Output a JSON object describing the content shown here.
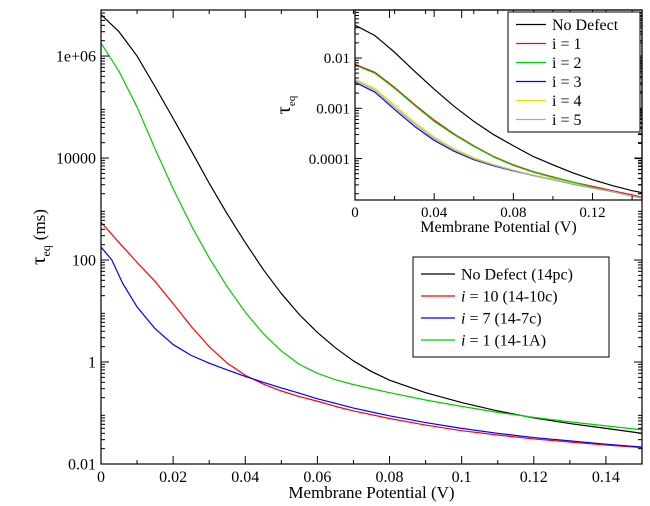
{
  "chart_data": [
    {
      "type": "line",
      "xlabel": "Membrane Potential (V)",
      "ylabel": "τ_eq (ms)",
      "ylabel_main": "τ",
      "ylabel_sub": "eq",
      "ylabel_unit": "(ms)",
      "xscale": "linear",
      "yscale": "log",
      "xlim": [
        0,
        0.15
      ],
      "ylim": [
        0.01,
        8000000
      ],
      "xticks": [
        0,
        0.02,
        0.04,
        0.06,
        0.08,
        0.1,
        0.12,
        0.14
      ],
      "xtick_labels": [
        "0",
        "0.02",
        "0.04",
        "0.06",
        "0.08",
        "0.1",
        "0.12",
        "0.14"
      ],
      "yticks": [
        0.01,
        1,
        100,
        10000,
        1000000
      ],
      "ytick_labels": [
        "0.01",
        "1",
        "100",
        "10000",
        "1e+06"
      ],
      "legend_position": "right",
      "series": [
        {
          "name": "No Defect (14pc)",
          "color": "#000000",
          "points": [
            [
              0,
              6500000
            ],
            [
              0.005,
              3000000
            ],
            [
              0.01,
              1000000
            ],
            [
              0.015,
              250000
            ],
            [
              0.02,
              60000
            ],
            [
              0.025,
              14000
            ],
            [
              0.03,
              3200
            ],
            [
              0.035,
              800
            ],
            [
              0.04,
              220
            ],
            [
              0.045,
              65
            ],
            [
              0.05,
              22
            ],
            [
              0.055,
              8.5
            ],
            [
              0.06,
              3.8
            ],
            [
              0.065,
              1.9
            ],
            [
              0.07,
              1.05
            ],
            [
              0.075,
              0.65
            ],
            [
              0.08,
              0.44
            ],
            [
              0.09,
              0.25
            ],
            [
              0.1,
              0.16
            ],
            [
              0.11,
              0.11
            ],
            [
              0.12,
              0.08
            ],
            [
              0.13,
              0.062
            ],
            [
              0.14,
              0.05
            ],
            [
              0.15,
              0.04
            ]
          ]
        },
        {
          "name": "i = 10 (14-10c)",
          "name_italic": "i",
          "name_rest": " = 10 (14-10c)",
          "color": "#ff0000",
          "points": [
            [
              0,
              550
            ],
            [
              0.005,
              220
            ],
            [
              0.01,
              90
            ],
            [
              0.015,
              38
            ],
            [
              0.02,
              14
            ],
            [
              0.025,
              5
            ],
            [
              0.03,
              2
            ],
            [
              0.035,
              0.95
            ],
            [
              0.04,
              0.55
            ],
            [
              0.045,
              0.37
            ],
            [
              0.05,
              0.27
            ],
            [
              0.055,
              0.21
            ],
            [
              0.06,
              0.17
            ],
            [
              0.065,
              0.135
            ],
            [
              0.07,
              0.11
            ],
            [
              0.08,
              0.078
            ],
            [
              0.09,
              0.058
            ],
            [
              0.1,
              0.045
            ],
            [
              0.11,
              0.037
            ],
            [
              0.12,
              0.031
            ],
            [
              0.13,
              0.027
            ],
            [
              0.14,
              0.0235
            ],
            [
              0.15,
              0.021
            ]
          ]
        },
        {
          "name": "i = 7 (14-7c)",
          "name_italic": "i",
          "name_rest": " = 7 (14-7c)",
          "color": "#0000ff",
          "points": [
            [
              0,
              180
            ],
            [
              0.003,
              100
            ],
            [
              0.006,
              35
            ],
            [
              0.01,
              12
            ],
            [
              0.015,
              4.5
            ],
            [
              0.02,
              2.2
            ],
            [
              0.025,
              1.35
            ],
            [
              0.03,
              0.95
            ],
            [
              0.035,
              0.7
            ],
            [
              0.04,
              0.52
            ],
            [
              0.045,
              0.4
            ],
            [
              0.05,
              0.31
            ],
            [
              0.055,
              0.245
            ],
            [
              0.06,
              0.19
            ],
            [
              0.065,
              0.155
            ],
            [
              0.07,
              0.125
            ],
            [
              0.08,
              0.088
            ],
            [
              0.09,
              0.065
            ],
            [
              0.1,
              0.05
            ],
            [
              0.11,
              0.04
            ],
            [
              0.12,
              0.033
            ],
            [
              0.13,
              0.0285
            ],
            [
              0.14,
              0.0245
            ],
            [
              0.15,
              0.0215
            ]
          ]
        },
        {
          "name": "i = 1 (14-1A)",
          "name_italic": "i",
          "name_rest": " = 1 (14-1A)",
          "color": "#00cc00",
          "points": [
            [
              0,
              1800000
            ],
            [
              0.005,
              500000
            ],
            [
              0.01,
              100000
            ],
            [
              0.015,
              15000
            ],
            [
              0.02,
              2500
            ],
            [
              0.025,
              480
            ],
            [
              0.03,
              110
            ],
            [
              0.035,
              30
            ],
            [
              0.04,
              9.5
            ],
            [
              0.045,
              3.6
            ],
            [
              0.05,
              1.65
            ],
            [
              0.055,
              0.9
            ],
            [
              0.06,
              0.6
            ],
            [
              0.065,
              0.45
            ],
            [
              0.07,
              0.36
            ],
            [
              0.08,
              0.25
            ],
            [
              0.09,
              0.18
            ],
            [
              0.1,
              0.135
            ],
            [
              0.11,
              0.103
            ],
            [
              0.12,
              0.082
            ],
            [
              0.13,
              0.067
            ],
            [
              0.14,
              0.056
            ],
            [
              0.15,
              0.047
            ]
          ]
        }
      ]
    },
    {
      "type": "line",
      "xlabel": "Membrane Potential (V)",
      "ylabel": "τ_eq",
      "ylabel_main": "τ",
      "ylabel_sub": "eq",
      "xscale": "linear",
      "yscale": "log",
      "xlim": [
        0,
        0.145
      ],
      "ylim": [
        1.5e-05,
        0.09
      ],
      "xticks": [
        0,
        0.04,
        0.08,
        0.12
      ],
      "xtick_labels": [
        "0",
        "0.04",
        "0.08",
        "0.12"
      ],
      "yticks": [
        0.0001,
        0.001,
        0.01
      ],
      "ytick_labels": [
        "0.0001",
        "0.001",
        "0.01"
      ],
      "legend_position": "top-right",
      "series": [
        {
          "name": "No Defect",
          "color": "#000000",
          "points": [
            [
              0,
              0.045
            ],
            [
              0.01,
              0.028
            ],
            [
              0.02,
              0.013
            ],
            [
              0.03,
              0.0055
            ],
            [
              0.04,
              0.0024
            ],
            [
              0.05,
              0.0011
            ],
            [
              0.06,
              0.00055
            ],
            [
              0.07,
              0.0003
            ],
            [
              0.08,
              0.00018
            ],
            [
              0.09,
              0.00011
            ],
            [
              0.1,
              7.5e-05
            ],
            [
              0.11,
              5.2e-05
            ],
            [
              0.12,
              3.8e-05
            ],
            [
              0.13,
              2.9e-05
            ],
            [
              0.14,
              2.3e-05
            ],
            [
              0.145,
              2.1e-05
            ]
          ]
        },
        {
          "name": "i = 1",
          "color": "#ff0000",
          "points": [
            [
              0,
              0.0075
            ],
            [
              0.01,
              0.0052
            ],
            [
              0.02,
              0.0026
            ],
            [
              0.03,
              0.0012
            ],
            [
              0.04,
              0.00058
            ],
            [
              0.05,
              0.00031
            ],
            [
              0.06,
              0.00018
            ],
            [
              0.07,
              0.00011
            ],
            [
              0.08,
              7.5e-05
            ],
            [
              0.09,
              5.5e-05
            ],
            [
              0.1,
              4.3e-05
            ],
            [
              0.11,
              3.4e-05
            ],
            [
              0.12,
              2.8e-05
            ],
            [
              0.13,
              2.3e-05
            ],
            [
              0.14,
              1.9e-05
            ],
            [
              0.145,
              1.7e-05
            ]
          ]
        },
        {
          "name": "i = 2",
          "color": "#00cc00",
          "points": [
            [
              0,
              0.0072
            ],
            [
              0.01,
              0.005
            ],
            [
              0.02,
              0.0025
            ],
            [
              0.03,
              0.00115
            ],
            [
              0.04,
              0.00055
            ],
            [
              0.05,
              0.0003
            ],
            [
              0.06,
              0.000175
            ],
            [
              0.07,
              0.000108
            ],
            [
              0.08,
              7.3e-05
            ],
            [
              0.09,
              5.4e-05
            ],
            [
              0.1,
              4.2e-05
            ],
            [
              0.11,
              3.4e-05
            ],
            [
              0.12,
              2.7e-05
            ],
            [
              0.13,
              2.2e-05
            ],
            [
              0.14,
              1.8e-05
            ],
            [
              0.145,
              1.65e-05
            ]
          ]
        },
        {
          "name": "i = 3",
          "color": "#0000ff",
          "points": [
            [
              0,
              0.0033
            ],
            [
              0.01,
              0.0021
            ],
            [
              0.02,
              0.00095
            ],
            [
              0.03,
              0.00044
            ],
            [
              0.04,
              0.00023
            ],
            [
              0.05,
              0.00014
            ],
            [
              0.06,
              9.5e-05
            ],
            [
              0.07,
              7.2e-05
            ],
            [
              0.08,
              5.7e-05
            ],
            [
              0.09,
              4.6e-05
            ],
            [
              0.1,
              3.8e-05
            ],
            [
              0.11,
              3.1e-05
            ],
            [
              0.12,
              2.6e-05
            ],
            [
              0.13,
              2.2e-05
            ],
            [
              0.14,
              1.8e-05
            ],
            [
              0.145,
              1.65e-05
            ]
          ]
        },
        {
          "name": "i = 4",
          "color": "#e6e600",
          "points": [
            [
              0,
              0.0038
            ],
            [
              0.01,
              0.0025
            ],
            [
              0.02,
              0.00115
            ],
            [
              0.03,
              0.00053
            ],
            [
              0.04,
              0.00027
            ],
            [
              0.05,
              0.000158
            ],
            [
              0.06,
              0.000104
            ],
            [
              0.07,
              7.6e-05
            ],
            [
              0.08,
              5.9e-05
            ],
            [
              0.09,
              4.7e-05
            ],
            [
              0.1,
              3.9e-05
            ],
            [
              0.11,
              3.2e-05
            ],
            [
              0.12,
              2.6e-05
            ],
            [
              0.13,
              2.2e-05
            ],
            [
              0.14,
              1.8e-05
            ],
            [
              0.145,
              1.65e-05
            ]
          ]
        },
        {
          "name": "i = 5",
          "color": "#aaaaaa",
          "points": [
            [
              0,
              0.0036
            ],
            [
              0.01,
              0.0023
            ],
            [
              0.02,
              0.00105
            ],
            [
              0.03,
              0.00049
            ],
            [
              0.04,
              0.00025
            ],
            [
              0.05,
              0.000148
            ],
            [
              0.06,
              9.9e-05
            ],
            [
              0.07,
              7.4e-05
            ],
            [
              0.08,
              5.8e-05
            ],
            [
              0.09,
              4.6e-05
            ],
            [
              0.1,
              3.8e-05
            ],
            [
              0.11,
              3.1e-05
            ],
            [
              0.12,
              2.6e-05
            ],
            [
              0.13,
              2.2e-05
            ],
            [
              0.14,
              1.8e-05
            ],
            [
              0.145,
              1.65e-05
            ]
          ]
        }
      ]
    }
  ]
}
